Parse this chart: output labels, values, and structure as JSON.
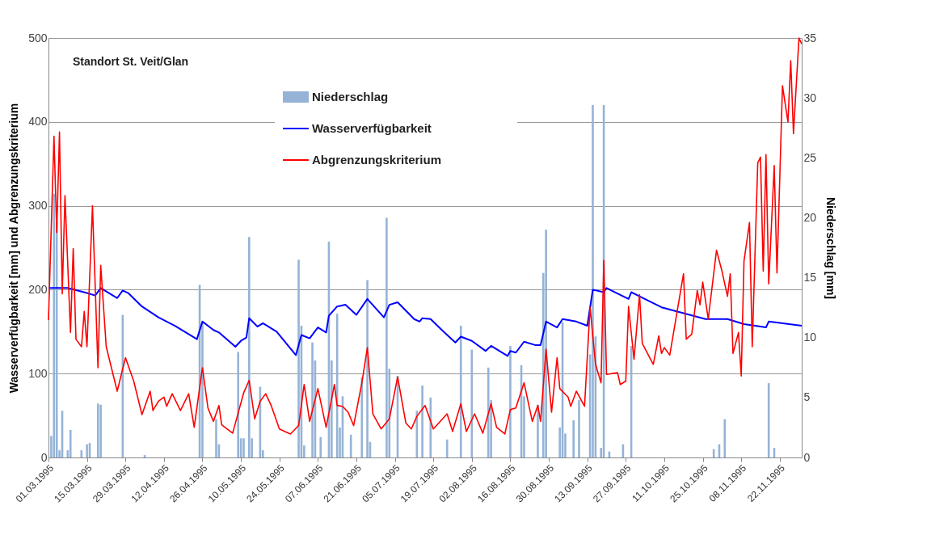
{
  "chart_data": {
    "type": "line",
    "title": "Standort St. Veit/Glan",
    "ylabel": "Wasserverfügbarkeit [mm] und Abgrenzungskriterium",
    "y2label": "Niederschlag [mm]",
    "xlim": [
      "1995-03-01",
      "1995-11-30"
    ],
    "xticks": [
      {
        "value": "1995-03-01",
        "label": "01.03.1995"
      },
      {
        "value": "1995-03-15",
        "label": "15.03.1995"
      },
      {
        "value": "1995-03-29",
        "label": "29.03.1995"
      },
      {
        "value": "1995-04-12",
        "label": "12.04.1995"
      },
      {
        "value": "1995-04-26",
        "label": "26.04.1995"
      },
      {
        "value": "1995-05-10",
        "label": "10.05.1995"
      },
      {
        "value": "1995-05-24",
        "label": "24.05.1995"
      },
      {
        "value": "1995-06-07",
        "label": "07.06.1995"
      },
      {
        "value": "1995-06-21",
        "label": "21.06.1995"
      },
      {
        "value": "1995-07-05",
        "label": "05.07.1995"
      },
      {
        "value": "1995-07-19",
        "label": "19.07.1995"
      },
      {
        "value": "1995-08-02",
        "label": "02.08.1995"
      },
      {
        "value": "1995-08-16",
        "label": "16.08.1995"
      },
      {
        "value": "1995-08-30",
        "label": "30.08.1995"
      },
      {
        "value": "1995-09-13",
        "label": "13.09.1995"
      },
      {
        "value": "1995-09-27",
        "label": "27.09.1995"
      },
      {
        "value": "1995-10-11",
        "label": "11.10.1995"
      },
      {
        "value": "1995-10-25",
        "label": "25.10.1995"
      },
      {
        "value": "1995-11-08",
        "label": "08.11.1995"
      },
      {
        "value": "1995-11-22",
        "label": "22.11.1995"
      }
    ],
    "ylim": [
      0,
      500
    ],
    "yticks": [
      0,
      100,
      200,
      300,
      400,
      500
    ],
    "y2lim": [
      0,
      35
    ],
    "y2ticks": [
      0,
      5,
      10,
      15,
      20,
      25,
      30,
      35
    ],
    "grid": "y",
    "legend": "top",
    "marker": "none",
    "line_style": "solid",
    "series": [
      {
        "name": "Niederschlag",
        "type": "bar",
        "axis": "y2",
        "color": "#95b3d7",
        "x": [
          "1995-03-02",
          "1995-03-03",
          "1995-03-04",
          "1995-03-05",
          "1995-03-06",
          "1995-03-08",
          "1995-03-09",
          "1995-03-13",
          "1995-03-15",
          "1995-03-16",
          "1995-03-19",
          "1995-03-20",
          "1995-03-28",
          "1995-04-05",
          "1995-04-25",
          "1995-04-26",
          "1995-05-01",
          "1995-05-02",
          "1995-05-09",
          "1995-05-10",
          "1995-05-11",
          "1995-05-13",
          "1995-05-14",
          "1995-05-17",
          "1995-05-18",
          "1995-05-31",
          "1995-06-01",
          "1995-06-02",
          "1995-06-05",
          "1995-06-06",
          "1995-06-08",
          "1995-06-11",
          "1995-06-12",
          "1995-06-14",
          "1995-06-15",
          "1995-06-16",
          "1995-06-19",
          "1995-06-23",
          "1995-06-25",
          "1995-06-26",
          "1995-07-02",
          "1995-07-03",
          "1995-07-06",
          "1995-07-13",
          "1995-07-15",
          "1995-07-18",
          "1995-07-24",
          "1995-07-29",
          "1995-08-02",
          "1995-08-08",
          "1995-08-09",
          "1995-08-16",
          "1995-08-20",
          "1995-08-21",
          "1995-08-26",
          "1995-08-28",
          "1995-08-29",
          "1995-09-03",
          "1995-09-04",
          "1995-09-05",
          "1995-09-08",
          "1995-09-10",
          "1995-09-14",
          "1995-09-15",
          "1995-09-16",
          "1995-09-18",
          "1995-09-19",
          "1995-09-21",
          "1995-09-26",
          "1995-09-29",
          "1995-10-29",
          "1995-10-31",
          "1995-11-02",
          "1995-11-18",
          "1995-11-20"
        ],
        "values": [
          1.8,
          22,
          19.7,
          0.6,
          3.9,
          0.6,
          2.3,
          0.6,
          1.1,
          1.2,
          4.5,
          4.4,
          11.9,
          0.2,
          14.4,
          11.3,
          3.2,
          1.1,
          8.8,
          1.6,
          1.6,
          18.4,
          1.6,
          5.9,
          0.6,
          16.5,
          11.0,
          1.0,
          9.6,
          8.1,
          1.7,
          18.0,
          8.1,
          12.0,
          2.5,
          5.1,
          1.9,
          6.7,
          14.8,
          1.3,
          20,
          7.4,
          6.8,
          3.9,
          6.0,
          5.0,
          1.5,
          11.0,
          9.0,
          7.5,
          4.8,
          9.3,
          7.7,
          5.1,
          4.4,
          15.4,
          19.0,
          2.5,
          11.3,
          2.0,
          3.1,
          4.8,
          8.6,
          29.4,
          10.1,
          0.8,
          29.4,
          0.5,
          1.1,
          9.3,
          0.7,
          1.1,
          3.2,
          6.2,
          0.8
        ]
      },
      {
        "name": "Wasserverfügbarkeit",
        "axis": "y",
        "color": "#0000ff",
        "x": [
          "1995-03-01",
          "1995-03-08",
          "1995-03-15",
          "1995-03-18",
          "1995-03-20",
          "1995-03-26",
          "1995-03-28",
          "1995-03-30",
          "1995-04-04",
          "1995-04-10",
          "1995-04-16",
          "1995-04-24",
          "1995-04-26",
          "1995-04-30",
          "1995-05-02",
          "1995-05-08",
          "1995-05-10",
          "1995-05-12",
          "1995-05-13",
          "1995-05-16",
          "1995-05-18",
          "1995-05-23",
          "1995-05-30",
          "1995-06-01",
          "1995-06-04",
          "1995-06-07",
          "1995-06-10",
          "1995-06-11",
          "1995-06-14",
          "1995-06-17",
          "1995-06-21",
          "1995-06-25",
          "1995-07-01",
          "1995-07-03",
          "1995-07-06",
          "1995-07-12",
          "1995-07-14",
          "1995-07-15",
          "1995-07-18",
          "1995-07-23",
          "1995-07-27",
          "1995-07-29",
          "1995-08-02",
          "1995-08-07",
          "1995-08-09",
          "1995-08-15",
          "1995-08-16",
          "1995-08-18",
          "1995-08-21",
          "1995-08-25",
          "1995-08-27",
          "1995-08-29",
          "1995-09-02",
          "1995-09-04",
          "1995-09-09",
          "1995-09-13",
          "1995-09-15",
          "1995-09-19",
          "1995-09-20",
          "1995-09-28",
          "1995-09-29",
          "1995-10-02",
          "1995-10-10",
          "1995-10-18",
          "1995-10-26",
          "1995-11-03",
          "1995-11-09",
          "1995-11-17",
          "1995-11-18",
          "1995-11-30"
        ],
        "values": [
          202,
          202,
          196,
          193,
          202,
          190,
          199,
          196,
          180,
          167,
          157,
          141,
          162,
          152,
          149,
          132,
          139,
          143,
          166,
          156,
          160,
          150,
          122,
          146,
          142,
          155,
          149,
          169,
          180,
          182,
          170,
          189,
          167,
          182,
          185,
          165,
          162,
          166,
          165,
          149,
          137,
          144,
          139,
          127,
          133,
          121,
          127,
          125,
          138,
          134,
          134,
          162,
          155,
          165,
          162,
          157,
          200,
          197,
          202,
          189,
          197,
          192,
          179,
          172,
          165,
          165,
          159,
          155,
          162,
          157
        ]
      },
      {
        "name": "Abgrenzungskriterium",
        "axis": "y",
        "color": "#ff0000",
        "x": [
          "1995-03-01",
          "1995-03-03",
          "1995-03-04",
          "1995-03-05",
          "1995-03-06",
          "1995-03-07",
          "1995-03-09",
          "1995-03-10",
          "1995-03-11",
          "1995-03-13",
          "1995-03-14",
          "1995-03-15",
          "1995-03-17",
          "1995-03-19",
          "1995-03-20",
          "1995-03-22",
          "1995-03-26",
          "1995-03-29",
          "1995-04-01",
          "1995-04-04",
          "1995-04-07",
          "1995-04-08",
          "1995-04-10",
          "1995-04-12",
          "1995-04-13",
          "1995-04-15",
          "1995-04-18",
          "1995-04-21",
          "1995-04-23",
          "1995-04-26",
          "1995-04-28",
          "1995-04-30",
          "1995-05-02",
          "1995-05-03",
          "1995-05-07",
          "1995-05-11",
          "1995-05-13",
          "1995-05-15",
          "1995-05-17",
          "1995-05-19",
          "1995-05-21",
          "1995-05-24",
          "1995-05-28",
          "1995-05-31",
          "1995-06-02",
          "1995-06-04",
          "1995-06-07",
          "1995-06-10",
          "1995-06-13",
          "1995-06-14",
          "1995-06-16",
          "1995-06-18",
          "1995-06-20",
          "1995-06-23",
          "1995-06-25",
          "1995-06-27",
          "1995-06-30",
          "1995-07-03",
          "1995-07-06",
          "1995-07-09",
          "1995-07-11",
          "1995-07-13",
          "1995-07-16",
          "1995-07-19",
          "1995-07-24",
          "1995-07-26",
          "1995-07-29",
          "1995-07-31",
          "1995-08-03",
          "1995-08-06",
          "1995-08-09",
          "1995-08-11",
          "1995-08-14",
          "1995-08-16",
          "1995-08-18",
          "1995-08-21",
          "1995-08-24",
          "1995-08-26",
          "1995-08-27",
          "1995-08-29",
          "1995-08-31",
          "1995-09-02",
          "1995-09-03",
          "1995-09-06",
          "1995-09-07",
          "1995-09-09",
          "1995-09-12",
          "1995-09-14",
          "1995-09-16",
          "1995-09-18",
          "1995-09-19",
          "1995-09-20",
          "1995-09-24",
          "1995-09-25",
          "1995-09-27",
          "1995-09-28",
          "1995-09-30",
          "1995-10-02",
          "1995-10-03",
          "1995-10-07",
          "1995-10-09",
          "1995-10-10",
          "1995-10-11",
          "1995-10-13",
          "1995-10-18",
          "1995-10-19",
          "1995-10-21",
          "1995-10-23",
          "1995-10-24",
          "1995-10-25",
          "1995-10-27",
          "1995-10-30",
          "1995-11-01",
          "1995-11-03",
          "1995-11-04",
          "1995-11-05",
          "1995-11-07",
          "1995-11-08",
          "1995-11-09",
          "1995-11-11",
          "1995-11-12",
          "1995-11-14",
          "1995-11-15",
          "1995-11-16",
          "1995-11-17",
          "1995-11-18",
          "1995-11-20",
          "1995-11-21",
          "1995-11-23",
          "1995-11-25",
          "1995-11-26",
          "1995-11-27",
          "1995-11-29",
          "1995-11-30"
        ],
        "values": [
          164,
          383,
          268,
          388,
          195,
          312,
          149,
          249,
          141,
          132,
          174,
          132,
          300,
          107,
          229,
          132,
          79,
          119,
          91,
          51,
          79,
          56,
          67,
          72,
          61,
          76,
          56,
          76,
          36,
          107,
          59,
          43,
          62,
          39,
          29,
          77,
          92,
          46,
          67,
          76,
          62,
          34,
          28,
          38,
          87,
          43,
          82,
          36,
          87,
          62,
          61,
          54,
          38,
          89,
          131,
          52,
          34,
          46,
          96,
          41,
          34,
          49,
          62,
          34,
          52,
          31,
          64,
          31,
          52,
          29,
          64,
          36,
          28,
          57,
          59,
          89,
          43,
          62,
          43,
          129,
          54,
          119,
          82,
          72,
          61,
          79,
          61,
          179,
          111,
          89,
          235,
          99,
          101,
          87,
          91,
          180,
          117,
          194,
          136,
          111,
          145,
          124,
          131,
          122,
          219,
          141,
          147,
          199,
          182,
          209,
          165,
          247,
          222,
          192,
          219,
          124,
          149,
          97,
          234,
          280,
          132,
          351,
          358,
          222,
          361,
          207,
          348,
          220,
          443,
          400,
          473,
          386,
          500,
          493
        ]
      }
    ]
  }
}
